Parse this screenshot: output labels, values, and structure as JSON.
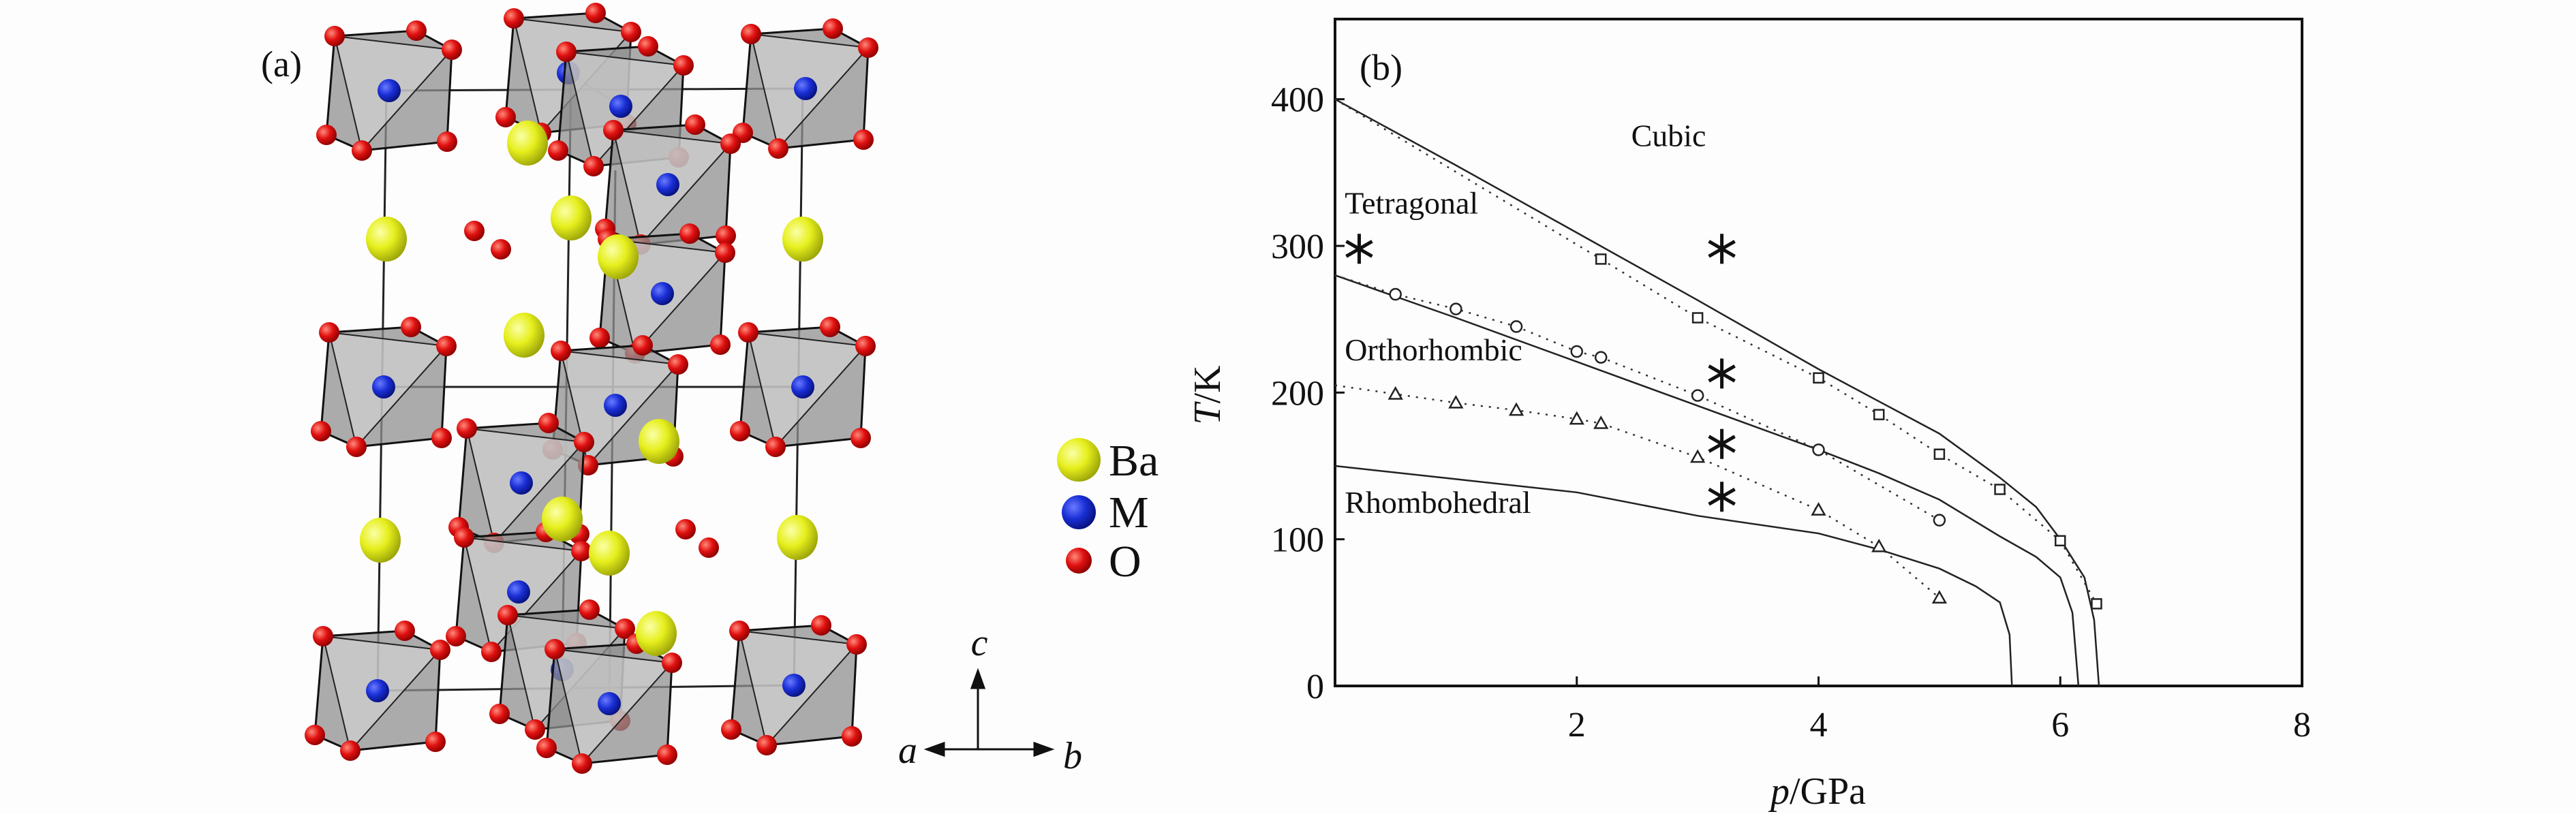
{
  "panel_a": {
    "label": "(a)",
    "legend": [
      {
        "name": "Ba",
        "color": "#e6ef1c"
      },
      {
        "name": "M",
        "color": "#1a2fd6"
      },
      {
        "name": "O",
        "color": "#e01010"
      }
    ],
    "axes": {
      "a": "a",
      "b": "b",
      "c": "c"
    }
  },
  "chart_data": {
    "type": "line",
    "panel_label": "(b)",
    "xlabel_italic": "p",
    "xlabel_unit": "/GPa",
    "ylabel_italic": "T",
    "ylabel_unit": "/K",
    "xlim": [
      0,
      8
    ],
    "ylim": [
      0,
      450
    ],
    "xticks": [
      2,
      4,
      6,
      8
    ],
    "yticks": [
      0,
      100,
      200,
      300,
      400
    ],
    "grid": false,
    "phase_labels": [
      {
        "text": "Cubic",
        "x": 2.45,
        "y": 368
      },
      {
        "text": "Tetragonal",
        "x": 0.08,
        "y": 322
      },
      {
        "text": "Orthorhombic",
        "x": 0.08,
        "y": 222
      },
      {
        "text": "Rhombohedral",
        "x": 0.08,
        "y": 118
      }
    ],
    "solid_lines": [
      {
        "name": "cubic-tetragonal boundary",
        "points": [
          [
            0,
            400
          ],
          [
            1,
            355
          ],
          [
            2,
            309
          ],
          [
            3,
            263
          ],
          [
            4,
            216
          ],
          [
            4.5,
            194
          ],
          [
            5,
            172
          ],
          [
            5.5,
            142
          ],
          [
            5.8,
            122
          ],
          [
            6,
            100
          ],
          [
            6.2,
            74
          ],
          [
            6.28,
            45
          ],
          [
            6.32,
            0
          ]
        ]
      },
      {
        "name": "tetragonal-orthorhombic boundary",
        "points": [
          [
            0,
            280
          ],
          [
            1,
            251
          ],
          [
            2,
            221
          ],
          [
            3,
            191
          ],
          [
            4,
            161
          ],
          [
            4.5,
            145
          ],
          [
            5,
            127
          ],
          [
            5.5,
            102
          ],
          [
            5.8,
            88
          ],
          [
            6,
            74
          ],
          [
            6.1,
            50
          ],
          [
            6.15,
            0
          ]
        ]
      },
      {
        "name": "orthorhombic-rhombohedral boundary",
        "points": [
          [
            0,
            150
          ],
          [
            1,
            141
          ],
          [
            2,
            132
          ],
          [
            3,
            116
          ],
          [
            4,
            104
          ],
          [
            4.5,
            93
          ],
          [
            5,
            80
          ],
          [
            5.3,
            68
          ],
          [
            5.5,
            57
          ],
          [
            5.58,
            35
          ],
          [
            5.6,
            0
          ]
        ]
      }
    ],
    "series": [
      {
        "name": "squares",
        "marker": "square",
        "points": [
          [
            0,
            400
          ],
          [
            2.2,
            291
          ],
          [
            3,
            251
          ],
          [
            4,
            210
          ],
          [
            4.5,
            185
          ],
          [
            5,
            158
          ],
          [
            5.5,
            134
          ],
          [
            6,
            99
          ],
          [
            6.3,
            56
          ]
        ]
      },
      {
        "name": "circles",
        "marker": "circle",
        "points": [
          [
            0,
            280
          ],
          [
            0.5,
            267
          ],
          [
            1,
            257
          ],
          [
            1.5,
            245
          ],
          [
            2,
            228
          ],
          [
            2.2,
            224
          ],
          [
            3,
            198
          ],
          [
            4,
            161
          ],
          [
            5,
            113
          ]
        ]
      },
      {
        "name": "triangles",
        "marker": "triangle",
        "points": [
          [
            0,
            205
          ],
          [
            0.5,
            199
          ],
          [
            1,
            193
          ],
          [
            1.5,
            188
          ],
          [
            2,
            182
          ],
          [
            2.2,
            179
          ],
          [
            3,
            156
          ],
          [
            4,
            120
          ],
          [
            4.5,
            95
          ],
          [
            5,
            60
          ]
        ]
      },
      {
        "name": "asterisks",
        "marker": "asterisk",
        "points": [
          [
            0.2,
            298
          ],
          [
            3.2,
            298
          ],
          [
            3.2,
            213
          ],
          [
            3.2,
            165
          ],
          [
            3.2,
            129
          ]
        ]
      }
    ]
  }
}
